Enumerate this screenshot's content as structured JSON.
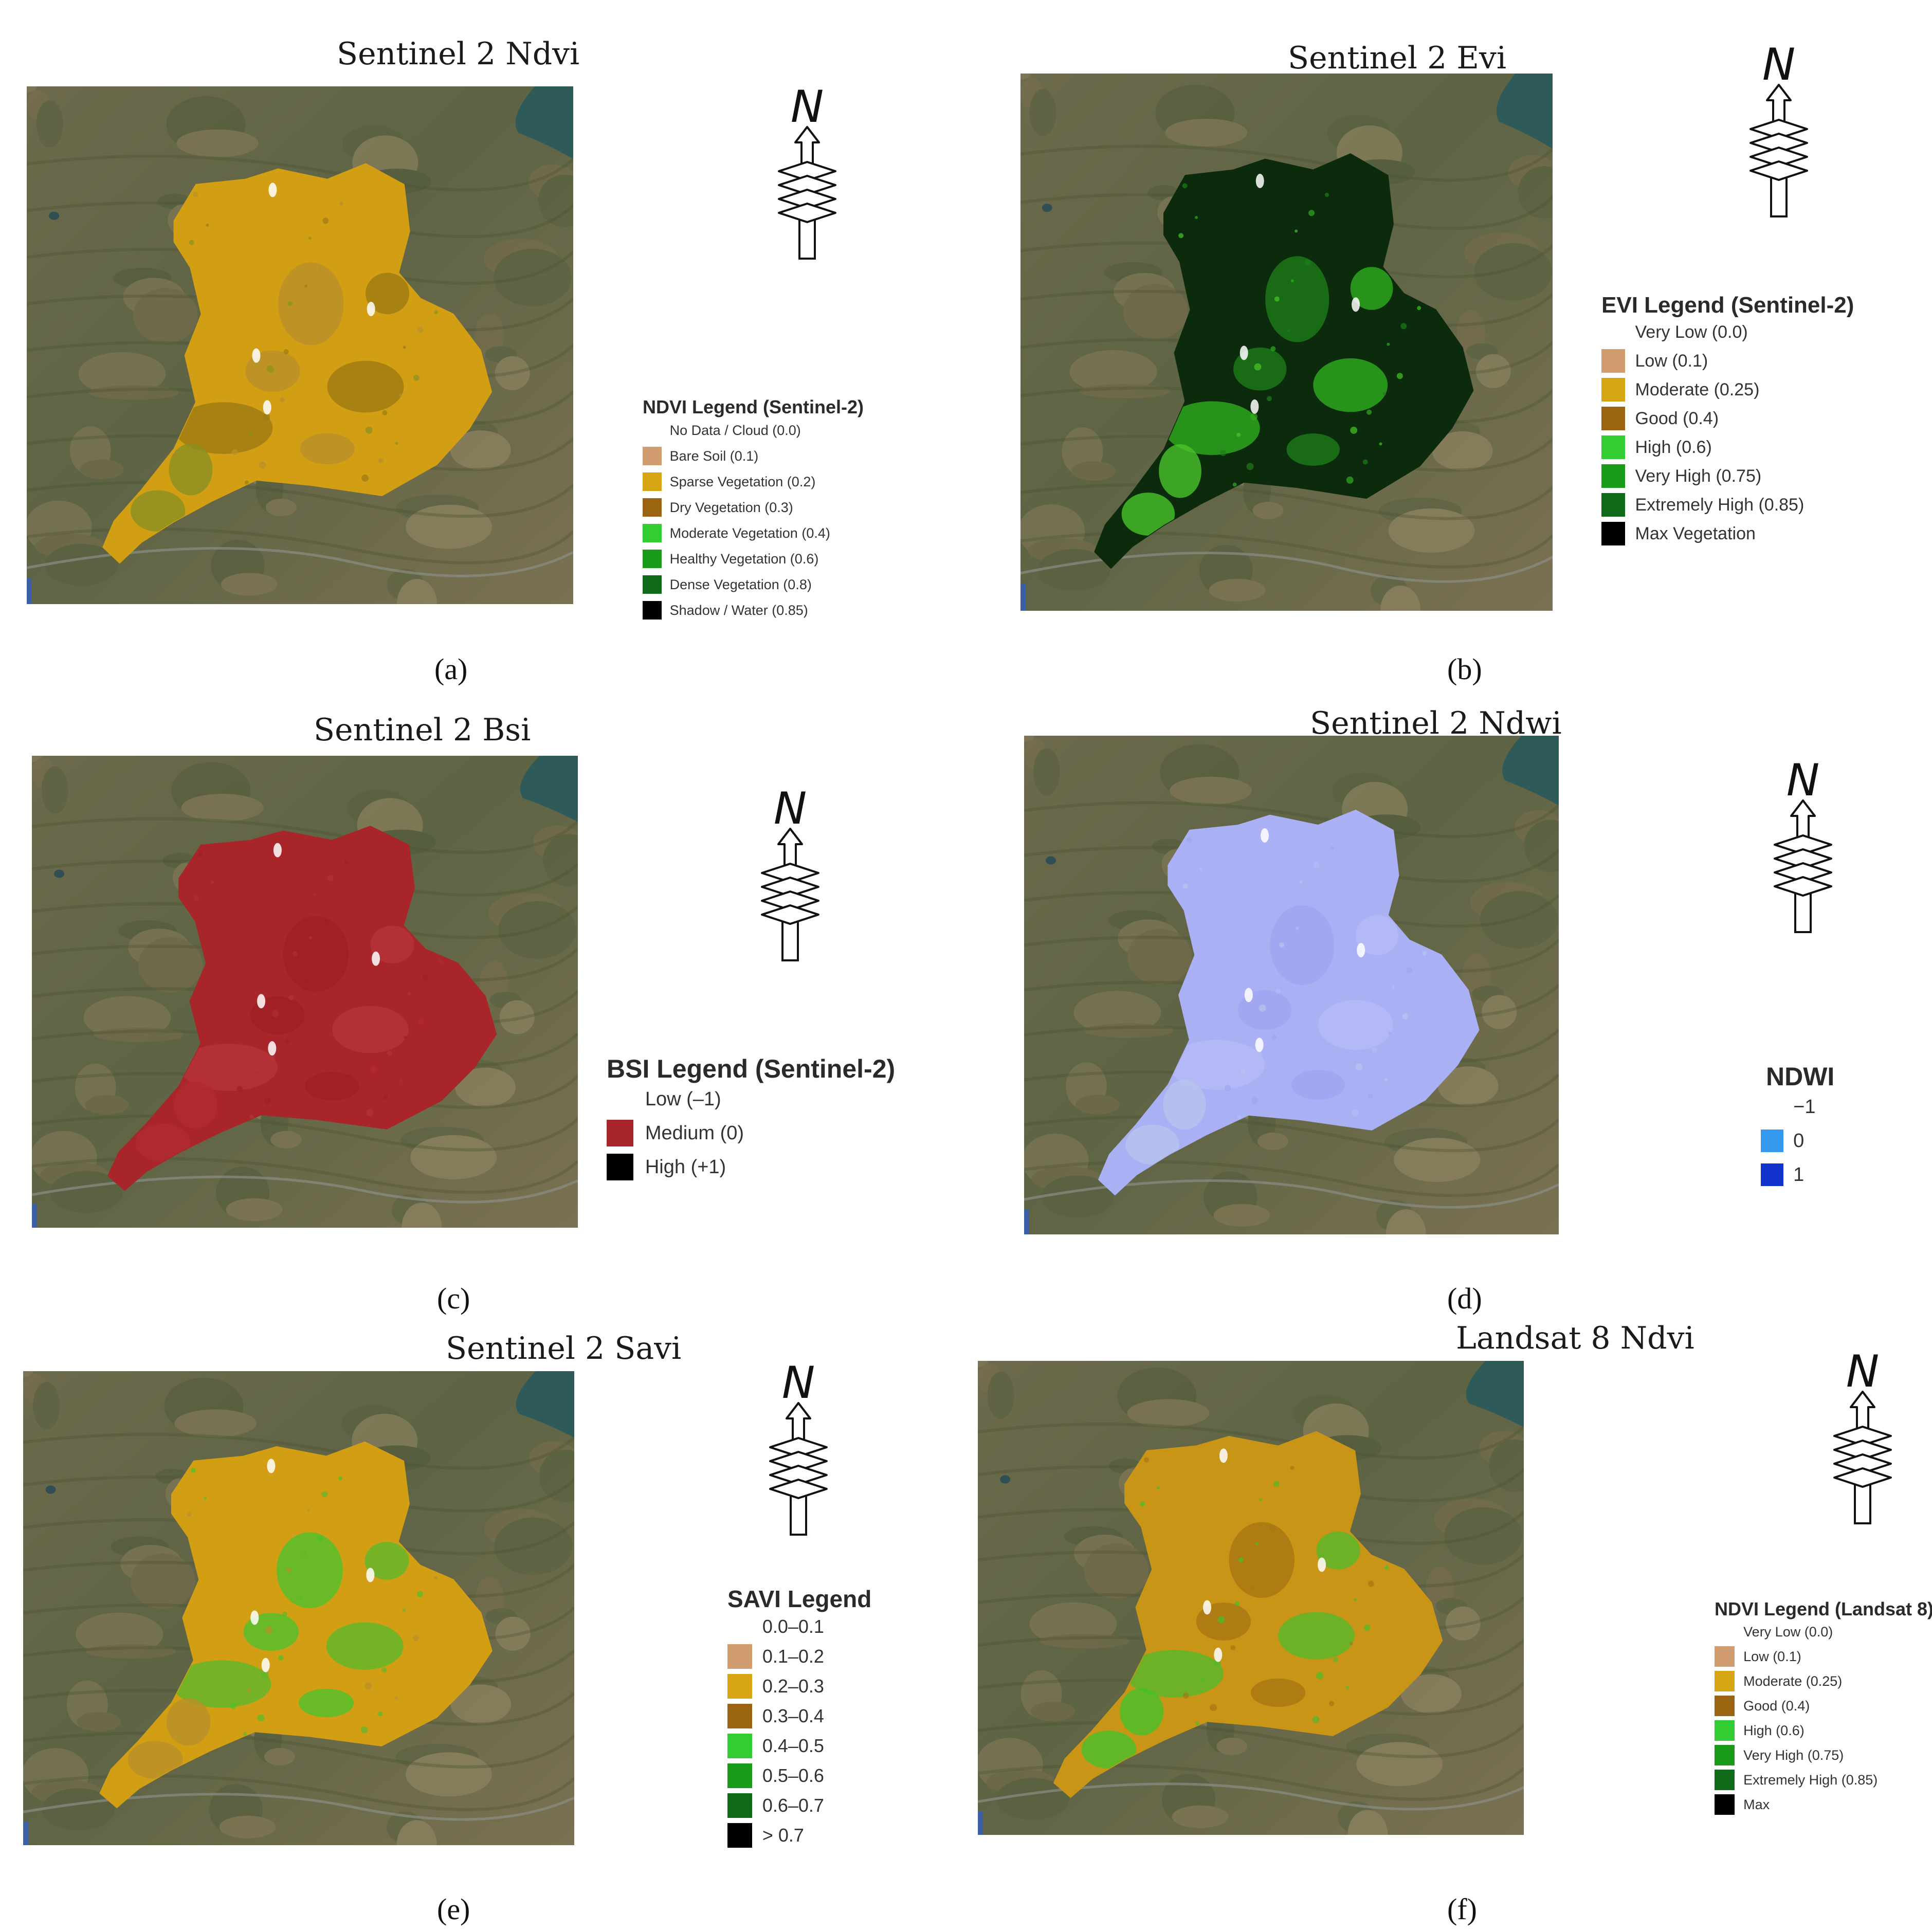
{
  "panels": [
    {
      "id": "a",
      "title": "Sentinel 2 Ndvi",
      "caption": "(a)",
      "north_label": "N",
      "fill": "#d29f14",
      "patches": [
        "#9c7a12",
        "#b8902a",
        "#8a9020"
      ],
      "legend": {
        "title": "NDVI Legend (Sentinel-2)",
        "items": [
          {
            "label": "No Data / Cloud (0.0)",
            "color": "#ffffff"
          },
          {
            "label": "Bare Soil (0.1)",
            "color": "#d19c6f"
          },
          {
            "label": "Sparse Vegetation (0.2)",
            "color": "#d6a514"
          },
          {
            "label": "Dry Vegetation (0.3)",
            "color": "#9b6410"
          },
          {
            "label": "Moderate Vegetation (0.4)",
            "color": "#33cc33"
          },
          {
            "label": "Healthy Vegetation (0.6)",
            "color": "#1a9c1a"
          },
          {
            "label": "Dense Vegetation (0.8)",
            "color": "#0f6b1a"
          },
          {
            "label": "Shadow / Water (0.85)",
            "color": "#000000"
          }
        ]
      }
    },
    {
      "id": "b",
      "title": "Sentinel 2 Evi",
      "caption": "(b)",
      "north_label": "N",
      "fill": "#0c2a0c",
      "patches": [
        "#2fae1f",
        "#1d7d18",
        "#49c62a"
      ],
      "legend": {
        "title": "EVI Legend (Sentinel-2)",
        "items": [
          {
            "label": "Very Low (0.0)",
            "color": "#ffffff"
          },
          {
            "label": "Low (0.1)",
            "color": "#d19c6f"
          },
          {
            "label": "Moderate (0.25)",
            "color": "#d6a514"
          },
          {
            "label": "Good (0.4)",
            "color": "#9b6410"
          },
          {
            "label": "High (0.6)",
            "color": "#33cc33"
          },
          {
            "label": "Very High (0.75)",
            "color": "#1a9c1a"
          },
          {
            "label": "Extremely High (0.85)",
            "color": "#0f6b1a"
          },
          {
            "label": "Max Vegetation",
            "color": "#000000"
          }
        ]
      }
    },
    {
      "id": "c",
      "title": "Sentinel 2 Bsi",
      "caption": "(c)",
      "north_label": "N",
      "fill": "#a8262a",
      "patches": [
        "#b53338",
        "#9e2024",
        "#b02c30"
      ],
      "legend": {
        "title": "BSI Legend (Sentinel-2)",
        "items": [
          {
            "label": "Low (–1)",
            "color": "#ffffff"
          },
          {
            "label": "Medium (0)",
            "color": "#a8262a"
          },
          {
            "label": "High (+1)",
            "color": "#000000"
          }
        ]
      }
    },
    {
      "id": "d",
      "title": "Sentinel 2 Ndwi",
      "caption": "(d)",
      "north_label": "N",
      "fill": "#aab0f4",
      "patches": [
        "#b4bcf6",
        "#9ea6f0",
        "#b8c4ec"
      ],
      "legend": {
        "title": "NDWI",
        "items": [
          {
            "label": "−1",
            "color": "#ffffff"
          },
          {
            "label": "0",
            "color": "#3399ee"
          },
          {
            "label": "1",
            "color": "#1133cc"
          }
        ]
      }
    },
    {
      "id": "e",
      "title": "Sentinel 2 Savi",
      "caption": "(e)",
      "north_label": "N",
      "fill": "#d29f14",
      "patches": [
        "#5cb82a",
        "#4fc02c",
        "#b8902a"
      ],
      "legend": {
        "title": "SAVI Legend",
        "items": [
          {
            "label": "0.0–0.1",
            "color": "#ffffff"
          },
          {
            "label": "0.1–0.2",
            "color": "#d19c6f"
          },
          {
            "label": "0.2–0.3",
            "color": "#d6a514"
          },
          {
            "label": "0.3–0.4",
            "color": "#9b6410"
          },
          {
            "label": "0.4–0.5",
            "color": "#33cc33"
          },
          {
            "label": "0.5–0.6",
            "color": "#1a9c1a"
          },
          {
            "label": "0.6–0.7",
            "color": "#0f6b1a"
          },
          {
            "label": "> 0.7",
            "color": "#000000"
          }
        ]
      }
    },
    {
      "id": "f",
      "title": "Landsat 8 Ndvi",
      "caption": "(f)",
      "north_label": "N",
      "fill": "#c99516",
      "patches": [
        "#55b82a",
        "#a87612",
        "#46c02a"
      ],
      "legend": {
        "title": "NDVI Legend (Landsat 8)",
        "items": [
          {
            "label": "Very Low (0.0)",
            "color": "#ffffff"
          },
          {
            "label": "Low (0.1)",
            "color": "#d19c6f"
          },
          {
            "label": "Moderate (0.25)",
            "color": "#d6a514"
          },
          {
            "label": "Good (0.4)",
            "color": "#9b6410"
          },
          {
            "label": "High (0.6)",
            "color": "#33cc33"
          },
          {
            "label": "Very High (0.75)",
            "color": "#1a9c1a"
          },
          {
            "label": "Extremely High (0.85)",
            "color": "#0f6b1a"
          },
          {
            "label": "Max",
            "color": "#000000"
          }
        ]
      }
    }
  ]
}
